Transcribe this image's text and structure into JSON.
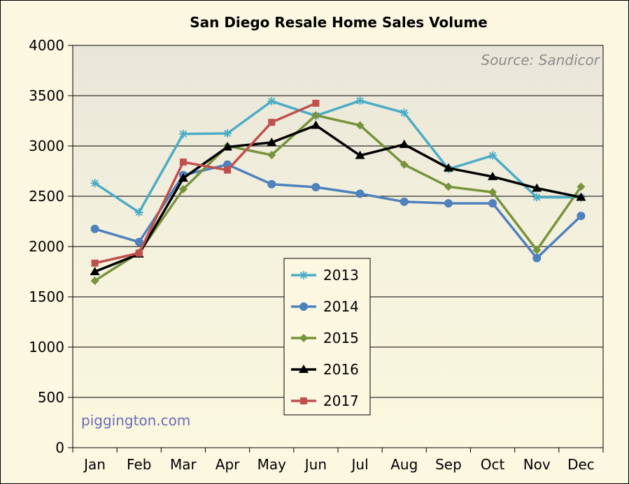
{
  "chart_data": {
    "type": "line",
    "title": "San Diego Resale Home Sales Volume",
    "source_note": "Source: Sandicor",
    "watermark": "piggington.com",
    "xlabel": "",
    "ylabel": "",
    "categories": [
      "Jan",
      "Feb",
      "Mar",
      "Apr",
      "May",
      "Jun",
      "Jul",
      "Aug",
      "Sep",
      "Oct",
      "Nov",
      "Dec"
    ],
    "ylim": [
      0,
      4000
    ],
    "yticks": [
      0,
      500,
      1000,
      1500,
      2000,
      2500,
      3000,
      3500,
      4000
    ],
    "grid": "horizontal",
    "legend_position": "bottom-center",
    "series": [
      {
        "name": "2013",
        "color": "#4bacc6",
        "marker": "asterisk",
        "values": [
          2630,
          2340,
          3120,
          3125,
          3445,
          3300,
          3450,
          3330,
          2770,
          2905,
          2490,
          2490
        ]
      },
      {
        "name": "2014",
        "color": "#4f81bd",
        "marker": "circle",
        "values": [
          2175,
          2045,
          2710,
          2815,
          2620,
          2590,
          2525,
          2445,
          2430,
          2430,
          1885,
          2305
        ]
      },
      {
        "name": "2015",
        "color": "#77933c",
        "marker": "diamond",
        "values": [
          1660,
          1940,
          2570,
          3000,
          2910,
          3305,
          3205,
          2815,
          2595,
          2540,
          1965,
          2595
        ]
      },
      {
        "name": "2016",
        "color": "#000000",
        "marker": "triangle",
        "values": [
          1750,
          1925,
          2680,
          2990,
          3035,
          3205,
          2905,
          3015,
          2780,
          2695,
          2580,
          2490
        ]
      },
      {
        "name": "2017",
        "color": "#c0504d",
        "marker": "square",
        "values": [
          1835,
          1935,
          2840,
          2760,
          3235,
          3425,
          null,
          null,
          null,
          null,
          null,
          null
        ]
      }
    ]
  }
}
